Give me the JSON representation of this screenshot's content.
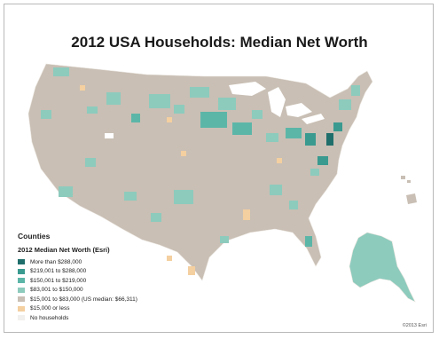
{
  "title": "2012 USA Households: Median Net Worth",
  "legend": {
    "heading": "Counties",
    "subheading": "2012 Median Net Worth (Esri)",
    "items": [
      {
        "label": "More than $288,000",
        "color": "#1f6e6b"
      },
      {
        "label": "$219,001 to $288,000",
        "color": "#3a9a90"
      },
      {
        "label": "$150,001 to $219,000",
        "color": "#5cb6a8"
      },
      {
        "label": "$83,001 to $150,000",
        "color": "#8dcbbd"
      },
      {
        "label": "$15,001 to $83,000 (US median: $66,311)",
        "color": "#c9bfb4"
      },
      {
        "label": "$15,000 or less",
        "color": "#f4cfa0"
      },
      {
        "label": "No households",
        "color": "#f2f0ee"
      }
    ]
  },
  "credit": "©2013 Esri"
}
